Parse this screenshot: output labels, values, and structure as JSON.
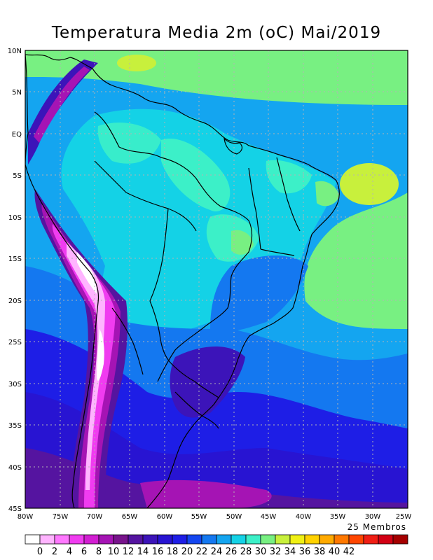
{
  "title": "Temperatura Media 2m (oC) Mai/2019",
  "members_label": "25 Membros",
  "lat_labels": [
    "10N",
    "5N",
    "EQ",
    "5S",
    "10S",
    "15S",
    "20S",
    "25S",
    "30S",
    "35S",
    "40S",
    "45S"
  ],
  "lon_labels": [
    "80W",
    "75W",
    "70W",
    "65W",
    "60W",
    "55W",
    "50W",
    "45W",
    "40W",
    "35W",
    "30W",
    "25W"
  ],
  "colorbar": {
    "labels": [
      "0",
      "2",
      "4",
      "6",
      "8",
      "10",
      "12",
      "14",
      "16",
      "18",
      "20",
      "22",
      "24",
      "26",
      "28",
      "30",
      "32",
      "34",
      "36",
      "38",
      "40",
      "42"
    ],
    "colors": [
      "#ffffff",
      "#ffb4ff",
      "#ff78ff",
      "#f03cf0",
      "#d21ed2",
      "#a514b4",
      "#78148c",
      "#5514a0",
      "#3c14b9",
      "#2814d2",
      "#1e1ee6",
      "#1446f0",
      "#1478f0",
      "#14a5f0",
      "#14d2e6",
      "#3cf0c8",
      "#78f082",
      "#c8f03c",
      "#f0f014",
      "#ffd200",
      "#ffaa00",
      "#ff7800",
      "#ff4600",
      "#f01e14",
      "#d20014",
      "#a50000"
    ]
  },
  "icons": {
    "map": "temperature-map"
  }
}
